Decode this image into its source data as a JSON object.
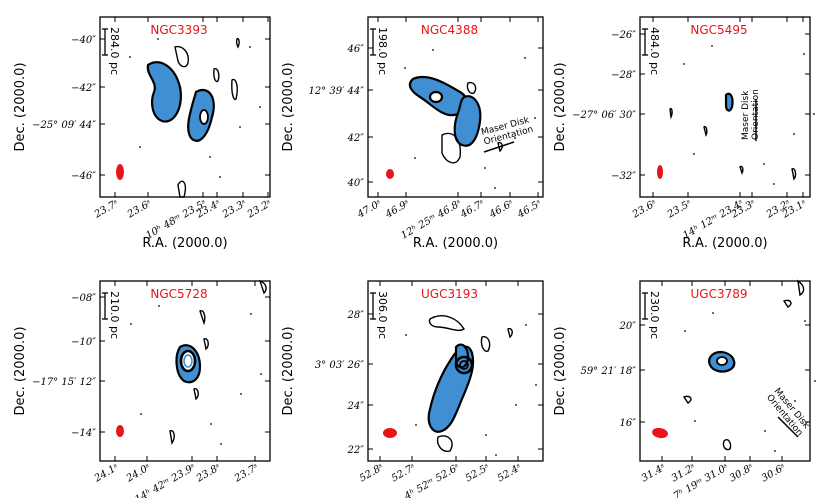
{
  "figure": {
    "xlabel": "R.A. (2000.0)",
    "ylabel": "Dec. (2000.0)",
    "orientation_label_1": "Maser Disk",
    "orientation_label_2": "Orientation",
    "colors": {
      "galaxy_label": "#e8141a",
      "beam": "#e8141a",
      "contour_outer": "#000000",
      "contour_fill": "#3f8fd2"
    }
  },
  "panels": [
    {
      "name": "NGC3393",
      "scale_bar": "284.0 pc",
      "show_xlabel": true,
      "show_orientation": false,
      "yticks": [
        "−40″",
        "−42″",
        "−25° 09′ 44″",
        "−46″"
      ],
      "xticks": [
        "23.7ˢ",
        "23.6ˢ",
        "10ʰ 48ᵐ 23.5ˢ",
        "23.4ˢ",
        "23.3ˢ",
        "23.2ˢ"
      ]
    },
    {
      "name": "NGC4388",
      "scale_bar": "198.0 pc",
      "show_xlabel": true,
      "show_orientation": true,
      "yticks": [
        "46″",
        "12° 39′ 44″",
        "42″",
        "40″"
      ],
      "xticks": [
        "47.0ˢ",
        "46.9ˢ",
        "12ʰ 25ᵐ 46.8ˢ",
        "46.7ˢ",
        "46.6ˢ",
        "46.5ˢ"
      ]
    },
    {
      "name": "NGC5495",
      "scale_bar": "484.0 pc",
      "show_xlabel": true,
      "show_orientation": true,
      "yticks": [
        "−26″",
        "−28″",
        "−27° 06′ 30″",
        "−32″"
      ],
      "xticks": [
        "23.6ˢ",
        "23.5ˢ",
        "14ʰ 12ᵐ 23.4ˢ",
        "23.3ˢ",
        "23.2ˢ",
        "23.1ˢ"
      ]
    },
    {
      "name": "NGC5728",
      "scale_bar": "210.0 pc",
      "show_xlabel": false,
      "show_orientation": false,
      "yticks": [
        "−08″",
        "−10″",
        "−17° 15′ 12″",
        "−14″"
      ],
      "xticks": [
        "24.1ˢ",
        "24.0ˢ",
        "14ʰ 42ᵐ 23.9ˢ",
        "23.8ˢ",
        "23.7ˢ"
      ]
    },
    {
      "name": "UGC3193",
      "scale_bar": "306.0 pc",
      "show_xlabel": false,
      "show_orientation": false,
      "yticks": [
        "28″",
        "3° 03′ 26″",
        "24″",
        "22″"
      ],
      "xticks": [
        "52.8ˢ",
        "52.7ˢ",
        "4ʰ 52ᵐ 52.6ˢ",
        "52.5ˢ",
        "52.4ˢ"
      ]
    },
    {
      "name": "UGC3789",
      "scale_bar": "230.0 pc",
      "show_xlabel": false,
      "show_orientation": true,
      "yticks": [
        "20″",
        "59° 21′ 18″",
        "16″"
      ],
      "xticks": [
        "31.4ˢ",
        "31.2ˢ",
        "7ʰ 19ᵐ 31.0ˢ",
        "30.8ˢ",
        "30.6ˢ"
      ]
    }
  ]
}
